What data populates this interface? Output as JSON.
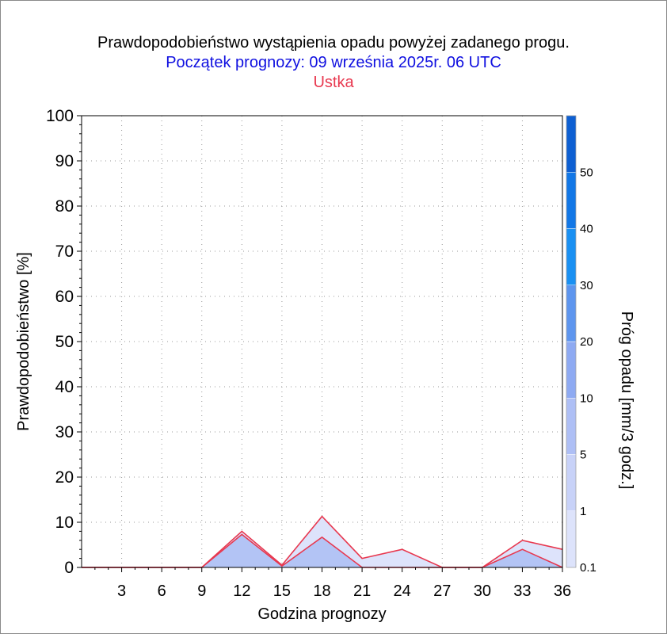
{
  "chart_data": {
    "type": "area",
    "title": "Prawdopodobieństwo wystąpienia opadu powyżej zadanego progu.",
    "subtitle": "Początek prognozy: 09 września 2025r. 06 UTC",
    "location": "Ustka",
    "xlabel": "Godzina prognozy",
    "ylabel": "Prawdopodobieństwo [%]",
    "colorbar_label": "Próg opadu [mm/3 godz.]",
    "xlim": [
      0,
      36
    ],
    "ylim": [
      0,
      100
    ],
    "x_ticks": [
      3,
      6,
      9,
      12,
      15,
      18,
      21,
      24,
      27,
      30,
      33,
      36
    ],
    "y_ticks": [
      0,
      10,
      20,
      30,
      40,
      50,
      60,
      70,
      80,
      90,
      100
    ],
    "grid": true,
    "x": [
      0,
      3,
      6,
      9,
      12,
      15,
      18,
      21,
      24,
      27,
      30,
      33,
      36
    ],
    "series": [
      {
        "threshold": "0.1",
        "color": "#dde3fb",
        "values": [
          0,
          0,
          0,
          0,
          8,
          0.5,
          11.3,
          2,
          4,
          0,
          0,
          6,
          4
        ]
      },
      {
        "threshold": "1",
        "color": "#b3c4f5",
        "values": [
          0,
          0,
          0,
          0,
          7.3,
          0.3,
          6.7,
          0,
          0,
          0,
          0,
          4,
          0
        ]
      }
    ],
    "colorbar": {
      "labels": [
        "0.1",
        "1",
        "5",
        "10",
        "20",
        "30",
        "40",
        "50"
      ],
      "colors": [
        "#dde3fb",
        "#c8d2f8",
        "#aebff5",
        "#8eaaf2",
        "#5d95ee",
        "#1a90f2",
        "#1277e6",
        "#0d5fd2",
        "#0a49b8"
      ]
    },
    "line_color": "#e8384f"
  }
}
